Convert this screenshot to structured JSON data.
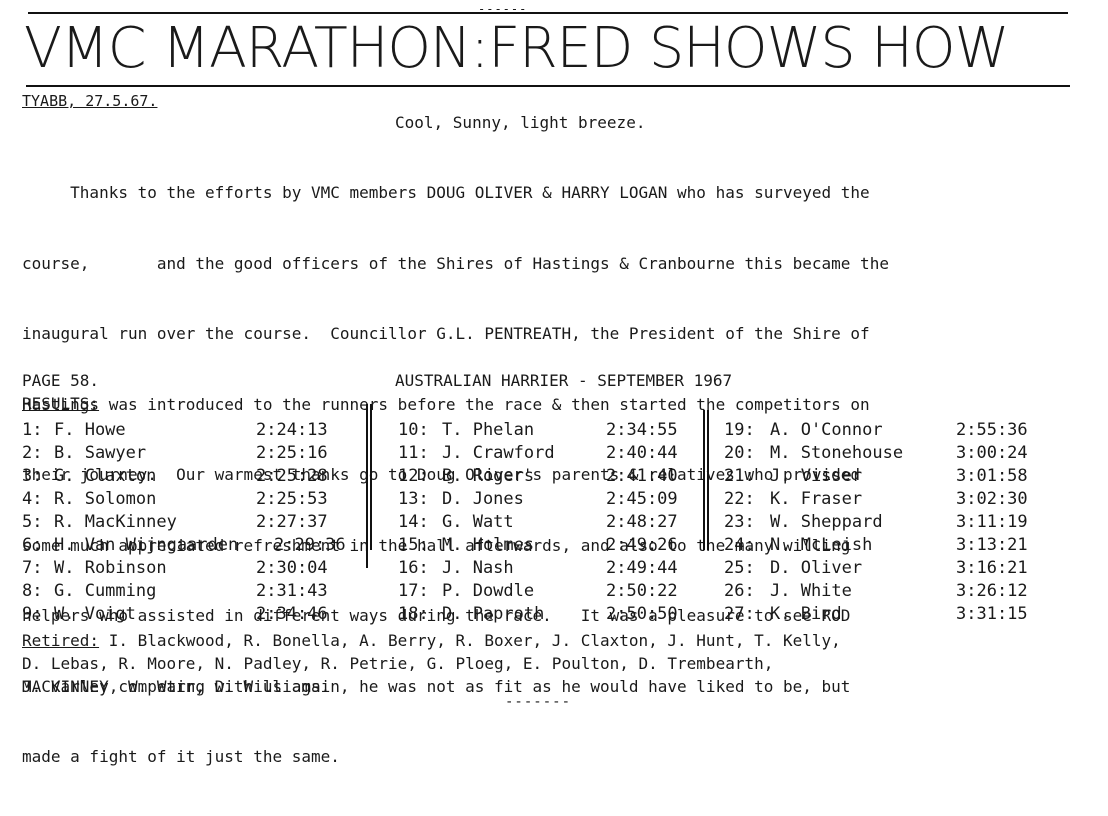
{
  "header": {
    "top_mark": "------",
    "title": "VMC MARATHON:FRED SHOWS HOW",
    "dateline": "TYABB, 27.5.67."
  },
  "report": {
    "weather": "Cool, Sunny, light breeze.",
    "lines": [
      "     Thanks to the efforts by VMC members DOUG OLIVER & HARRY LOGAN who has surveyed the",
      "course,       and the good officers of the Shires of Hastings & Cranbourne this became the",
      "inaugural run over the course.  Councillor G.L. PENTREATH, the President of the Shire of",
      "Hastings was introduced to the runners before the race & then started the competitors on",
      "their journey.  Our warmest thanks go to Doug Oliver's parents & relatives who provided",
      "some much appreciated refreshment in the hall afterwards, and also to the many willing",
      "helpers who assisted in different ways during the race.   It was a pleasure to see ROD",
      "MACKINNEY competing with us again, he was not as fit as he would have liked to be, but",
      "made a fight of it just the same."
    ]
  },
  "page_info": {
    "page": "PAGE 58.",
    "publication": "AUSTRALIAN HARRIER - SEPTEMBER 1967"
  },
  "results": {
    "heading": "RESULTS:",
    "columns": [
      [
        {
          "pos": "1:",
          "name": "F. Howe",
          "time": "2:24:13"
        },
        {
          "pos": "2:",
          "name": "B. Sawyer",
          "time": "2:25:16"
        },
        {
          "pos": "3:",
          "name": "G. Claxton",
          "time": "2:25:28"
        },
        {
          "pos": "4:",
          "name": "R. Solomon",
          "time": "2:25:53"
        },
        {
          "pos": "5:",
          "name": "R. MacKinney",
          "time": "2:27:37"
        },
        {
          "pos": "6:",
          "name": "H. Van Wijngaarden",
          "time": "2:29:36"
        },
        {
          "pos": "7:",
          "name": "W. Robinson",
          "time": "2:30:04"
        },
        {
          "pos": "8:",
          "name": "G. Cumming",
          "time": "2:31:43"
        },
        {
          "pos": "9:",
          "name": "W. Voigt",
          "time": "2:34:46"
        }
      ],
      [
        {
          "pos": "10:",
          "name": "T. Phelan",
          "time": "2:34:55"
        },
        {
          "pos": "11:",
          "name": "J. Crawford",
          "time": "2:40:44"
        },
        {
          "pos": "12:",
          "name": "B. Rogers",
          "time": "2:41:40"
        },
        {
          "pos": "13:",
          "name": "D. Jones",
          "time": "2:45:09"
        },
        {
          "pos": "14:",
          "name": "G. Watt",
          "time": "2:48:27"
        },
        {
          "pos": "15:",
          "name": "M. Holmes",
          "time": "2:49:26"
        },
        {
          "pos": "16:",
          "name": "J. Nash",
          "time": "2:49:44"
        },
        {
          "pos": "17:",
          "name": "P. Dowdle",
          "time": "2:50:22"
        },
        {
          "pos": "18:",
          "name": "D. Paproth",
          "time": "2:50:50"
        }
      ],
      [
        {
          "pos": "19:",
          "name": "A. O'Connor",
          "time": "2:55:36"
        },
        {
          "pos": "20:",
          "name": "M. Stonehouse",
          "time": "3:00:24"
        },
        {
          "pos": "21:",
          "name": "J. Visser",
          "time": "3:01:58"
        },
        {
          "pos": "22:",
          "name": "K. Fraser",
          "time": "3:02:30"
        },
        {
          "pos": "23:",
          "name": "W. Sheppard",
          "time": "3:11:19"
        },
        {
          "pos": "24:",
          "name": "N. McLeish",
          "time": "3:13:21"
        },
        {
          "pos": "25:",
          "name": "D. Oliver",
          "time": "3:16:21"
        },
        {
          "pos": "26:",
          "name": "J. White",
          "time": "3:26:12"
        },
        {
          "pos": "27:",
          "name": "K. Bird",
          "time": "3:31:15"
        }
      ]
    ]
  },
  "retired": {
    "label": "Retired:",
    "line_1": " I. Blackwood, R. Bonella, A. Berry, R. Boxer, J. Claxton, J. Hunt, T. Kelly,",
    "line_2": "D. Lebas, R. Moore, N. Padley, R. Petrie, G. Ploeg, E. Poulton, D. Trembearth,",
    "line_3": "J. Varley, W. Warr, D. Williams."
  },
  "footer": {
    "end_mark": "-------"
  }
}
